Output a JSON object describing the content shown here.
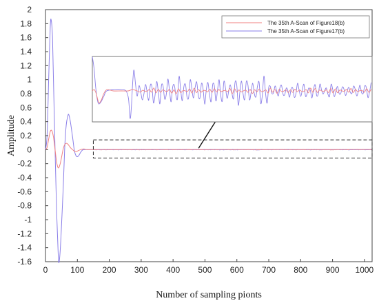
{
  "chart_data": {
    "type": "line",
    "xlabel": "Number of sampling pionts",
    "ylabel": "Amplitude",
    "xlim": [
      0,
      1024
    ],
    "ylim": [
      -1.6,
      2.0
    ],
    "xticks": [
      0,
      100,
      200,
      300,
      400,
      500,
      600,
      700,
      800,
      900,
      1000
    ],
    "yticks": [
      2,
      1.8,
      1.6,
      1.4,
      1.2,
      1,
      0.8,
      0.6,
      0.4,
      0.2,
      0,
      -0.2,
      -0.4,
      -0.6,
      -0.8,
      -1,
      -1.2,
      -1.4,
      -1.6
    ],
    "ytick_labels": [
      "2",
      "1.8",
      "1.6",
      "1.4",
      "1.2",
      "1",
      "0.8",
      "0.6",
      "0.4",
      "0.2",
      "0",
      "-0.2",
      "-0.4",
      "-0.6",
      "-0.8",
      "-1",
      "-1.2",
      "-1.4",
      "-1.6"
    ],
    "grid": false,
    "legend_position": "top-right",
    "series": [
      {
        "name": "The 35th A-Scan of Figure18(b)",
        "color": "#f08080",
        "x": [
          0,
          5,
          10,
          15,
          20,
          25,
          30,
          35,
          40,
          45,
          50,
          55,
          60,
          65,
          70,
          75,
          80,
          85,
          90,
          95,
          100,
          110,
          120,
          130,
          140,
          150,
          200,
          300,
          400,
          500,
          600,
          700,
          800,
          900,
          1024
        ],
        "y": [
          0,
          0.03,
          0.15,
          0.26,
          0.27,
          0.18,
          0.0,
          -0.18,
          -0.26,
          -0.22,
          -0.12,
          0.0,
          0.07,
          0.09,
          0.08,
          0.05,
          0.02,
          0.0,
          -0.02,
          -0.03,
          -0.02,
          0.0,
          0.01,
          0.0,
          0.0,
          0.0,
          0.0,
          0.0,
          0.0,
          0.0,
          0.0,
          0.0,
          0.0,
          0.0,
          0.0
        ]
      },
      {
        "name": "The 35th A-Scan of Figure17(b)",
        "color": "#8a7ee8",
        "x": [
          0,
          5,
          10,
          15,
          18,
          22,
          25,
          30,
          35,
          40,
          43,
          48,
          55,
          60,
          65,
          70,
          73,
          78,
          85,
          90,
          95,
          100,
          105,
          110,
          115,
          120,
          130,
          140,
          150,
          200,
          300,
          400,
          500,
          600,
          700,
          800,
          900,
          1024
        ],
        "y": [
          0,
          0.2,
          1.0,
          1.75,
          1.85,
          1.6,
          1.0,
          0.0,
          -0.9,
          -1.5,
          -1.6,
          -1.3,
          -0.6,
          0.0,
          0.35,
          0.48,
          0.5,
          0.4,
          0.18,
          0.0,
          -0.08,
          -0.1,
          -0.08,
          -0.04,
          -0.01,
          0.0,
          0.0,
          0.0,
          0.0,
          0.0,
          0.0,
          0.0,
          0.0,
          0.0,
          0.0,
          0.0,
          0.0,
          0.0
        ]
      }
    ],
    "annotations": {
      "zoom_region": {
        "x": [
          150,
          1024
        ],
        "y": [
          -0.12,
          0.14
        ]
      },
      "arrow": {
        "from": [
          480,
          0.02
        ],
        "to": [
          580,
          0.74
        ]
      },
      "inset_range": {
        "x": [
          150,
          1024
        ]
      }
    }
  }
}
